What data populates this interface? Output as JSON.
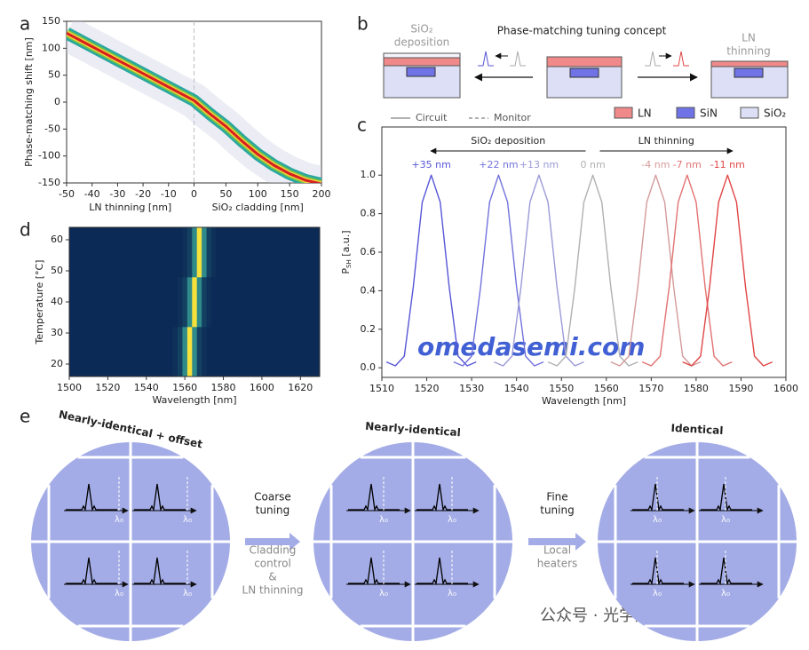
{
  "panel_labels": [
    "a",
    "b",
    "c",
    "d",
    "e"
  ],
  "chart_data": [
    {
      "type": "line",
      "ylabel": "Phase-matching shift [nm]",
      "xlabel_left": "LN thinning [nm]",
      "xlabel_right": "SiO₂ cladding [nm]",
      "xsplit": 0,
      "x": [
        -50,
        -40,
        -30,
        -20,
        -10,
        0,
        25,
        50,
        75,
        100,
        125,
        150,
        175,
        200
      ],
      "values": [
        128,
        103,
        78,
        53,
        28,
        3,
        -22,
        -45,
        -72,
        -97,
        -117,
        -133,
        -145,
        -152
      ],
      "color": "#d62020",
      "xlim": [
        -50,
        200
      ],
      "ylim": [
        -150,
        150
      ],
      "xticks": [
        -50,
        -40,
        -30,
        -20,
        -10,
        0,
        50,
        100,
        150,
        200
      ],
      "yticks": [
        -150,
        -100,
        -50,
        0,
        50,
        100,
        150
      ]
    },
    {
      "type": "line",
      "ylabel": [
        "P",
        "SH",
        " [a.u.]"
      ],
      "xlabel": "Wavelength [nm]",
      "xlim": [
        1510,
        1600
      ],
      "ylim": [
        -0.05,
        1.25
      ],
      "xticks": [
        1510,
        1520,
        1530,
        1540,
        1550,
        1560,
        1570,
        1580,
        1590,
        1600
      ],
      "yticks": [
        {
          "value": 0,
          "label": "0.0"
        },
        0.2,
        0.4,
        0.6,
        0.8,
        {
          "value": 1,
          "label": "1.0"
        }
      ],
      "legend": [
        "Circuit",
        "Monitor"
      ],
      "annotations": [
        {
          "text": "SiO₂ deposition",
          "direction": "left"
        },
        {
          "text": "LN thinning",
          "direction": "right"
        }
      ],
      "series": [
        {
          "name": "+35 nm",
          "color": "#5656d8",
          "x": [
            1511,
            1513,
            1515,
            1517,
            1519,
            1521,
            1523,
            1525,
            1527,
            1529,
            1531
          ],
          "values": [
            0.03,
            0.01,
            0.06,
            0.42,
            0.86,
            1,
            0.86,
            0.42,
            0.06,
            0.01,
            0.03
          ]
        },
        {
          "name": "+22 nm",
          "color": "#7272dc",
          "x": [
            1526,
            1528,
            1530,
            1532,
            1534,
            1536,
            1538,
            1540,
            1542,
            1544,
            1546
          ],
          "values": [
            0.03,
            0.01,
            0.06,
            0.42,
            0.86,
            1,
            0.86,
            0.42,
            0.06,
            0.01,
            0.03
          ]
        },
        {
          "name": "+13 nm",
          "color": "#9a9ad8",
          "x": [
            1535,
            1537,
            1539,
            1541,
            1543,
            1545,
            1547,
            1549,
            1551,
            1553,
            1555
          ],
          "values": [
            0.03,
            0.01,
            0.06,
            0.42,
            0.86,
            1,
            0.86,
            0.42,
            0.06,
            0.01,
            0.03
          ]
        },
        {
          "name": "0 nm",
          "color": "#b0b0b0",
          "x": [
            1547,
            1549,
            1551,
            1553,
            1555,
            1557,
            1559,
            1561,
            1563,
            1565,
            1567
          ],
          "values": [
            0.03,
            0.01,
            0.06,
            0.42,
            0.86,
            1,
            0.86,
            0.42,
            0.06,
            0.01,
            0.03
          ]
        },
        {
          "name": "-4 nm",
          "color": "#d49a9a",
          "x": [
            1561,
            1563,
            1565,
            1567,
            1569,
            1571,
            1573,
            1575,
            1577,
            1579,
            1581
          ],
          "values": [
            0.03,
            0.01,
            0.06,
            0.42,
            0.86,
            1,
            0.86,
            0.42,
            0.06,
            0.01,
            0.03
          ]
        },
        {
          "name": "-7 nm",
          "color": "#e27272",
          "x": [
            1568,
            1570,
            1572,
            1574,
            1576,
            1578,
            1580,
            1582,
            1584,
            1586,
            1588
          ],
          "values": [
            0.03,
            0.01,
            0.06,
            0.42,
            0.86,
            1,
            0.86,
            0.42,
            0.06,
            0.01,
            0.03
          ]
        },
        {
          "name": "-11 nm",
          "color": "#e04646",
          "x": [
            1577,
            1579,
            1581,
            1583,
            1585,
            1587,
            1589,
            1591,
            1593,
            1595,
            1597
          ],
          "values": [
            0.03,
            0.01,
            0.06,
            0.42,
            0.86,
            1,
            0.86,
            0.42,
            0.06,
            0.01,
            0.03
          ]
        }
      ]
    },
    {
      "type": "heatmap",
      "ylabel": "Temperature [°C]",
      "xlabel": "Wavelength [nm]",
      "xlim": [
        1500,
        1630
      ],
      "ylim": [
        16,
        64
      ],
      "xticks": [
        1500,
        1520,
        1540,
        1560,
        1580,
        1600,
        1620
      ],
      "yticks": [
        20,
        30,
        40,
        50,
        60
      ],
      "colormap": [
        "#0c2a56",
        "#2f8a8a",
        "#f6e03c"
      ],
      "x": [
        1550,
        1552.5,
        1555,
        1557.5,
        1560,
        1562.5,
        1565,
        1567.5,
        1570,
        1572.5,
        1575,
        1577.5,
        1580
      ],
      "y": [
        18,
        22,
        26,
        30,
        34,
        38,
        42,
        46,
        50,
        54,
        58,
        62
      ],
      "values": [
        [
          0,
          0,
          0.03,
          0.12,
          0.5,
          1,
          0.5,
          0.12,
          0.03,
          0,
          0,
          0,
          0
        ],
        [
          0,
          0,
          0.03,
          0.12,
          0.5,
          1,
          0.5,
          0.12,
          0.03,
          0,
          0,
          0,
          0
        ],
        [
          0,
          0,
          0.03,
          0.12,
          0.5,
          1,
          0.5,
          0.12,
          0.03,
          0,
          0,
          0,
          0
        ],
        [
          0,
          0,
          0.03,
          0.12,
          0.5,
          1,
          0.5,
          0.12,
          0.03,
          0,
          0,
          0,
          0
        ],
        [
          0,
          0,
          0,
          0.03,
          0.12,
          0.5,
          1,
          0.5,
          0.12,
          0.03,
          0,
          0,
          0
        ],
        [
          0,
          0,
          0,
          0.03,
          0.12,
          0.5,
          1,
          0.5,
          0.12,
          0.03,
          0,
          0,
          0
        ],
        [
          0,
          0,
          0,
          0.03,
          0.12,
          0.5,
          1,
          0.5,
          0.12,
          0.03,
          0,
          0,
          0
        ],
        [
          0,
          0,
          0,
          0.03,
          0.12,
          0.5,
          1,
          0.5,
          0.12,
          0.03,
          0,
          0,
          0
        ],
        [
          0,
          0,
          0,
          0,
          0.03,
          0.12,
          0.5,
          1,
          0.5,
          0.12,
          0.03,
          0,
          0
        ],
        [
          0,
          0,
          0,
          0,
          0.03,
          0.12,
          0.5,
          1,
          0.5,
          0.12,
          0.03,
          0,
          0
        ],
        [
          0,
          0,
          0,
          0,
          0.03,
          0.12,
          0.5,
          1,
          0.5,
          0.12,
          0.03,
          0,
          0
        ],
        [
          0,
          0,
          0,
          0,
          0.03,
          0.12,
          0.5,
          1,
          0.5,
          0.12,
          0.03,
          0,
          0
        ]
      ]
    }
  ],
  "diagram_b": {
    "title": "Phase-matching tuning concept",
    "left_label": [
      "SiO₂",
      "deposition"
    ],
    "right_label": [
      "LN",
      "thinning"
    ],
    "legend": [
      "LN",
      "SiN",
      "SiO₂"
    ]
  },
  "diagram_e": {
    "stages": [
      "Nearly-identical + offset",
      "Nearly-identical",
      "Identical"
    ],
    "steps": [
      {
        "title": [
          "Coarse",
          "tuning"
        ],
        "method": [
          "Cladding",
          "control",
          "&",
          "LN thinning"
        ]
      },
      {
        "title": [
          "Fine",
          "tuning"
        ],
        "method": [
          "Local",
          "heaters"
        ]
      }
    ],
    "marker": "λ₀"
  },
  "watermarks": [
    "omedasemi.com",
    "公众号 · 光学加工小助手"
  ]
}
